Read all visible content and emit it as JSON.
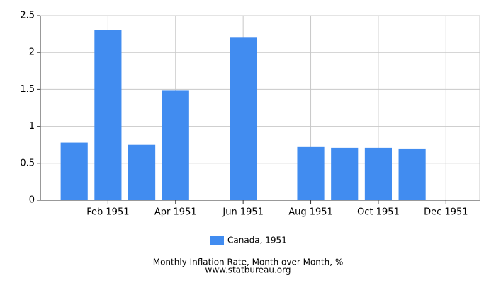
{
  "chart_data": {
    "type": "bar",
    "categories": [
      null,
      "Feb 1951",
      null,
      "Apr 1951",
      null,
      "Jun 1951",
      null,
      "Aug 1951",
      null,
      "Oct 1951",
      null,
      "Dec 1951"
    ],
    "series": [
      {
        "name": "Canada, 1951",
        "color": "#418cf0",
        "values": [
          0.78,
          2.3,
          0.75,
          1.49,
          0,
          2.2,
          0,
          0.72,
          0.71,
          0.71,
          0.7,
          null
        ]
      }
    ],
    "ylim": [
      0,
      2.5
    ],
    "yticks": [
      0,
      0.5,
      1,
      1.5,
      2,
      2.5
    ],
    "grid": true,
    "legend": "bottom",
    "title": "Monthly Inflation Rate, Month over Month, %",
    "subtitle": "www.statbureau.org"
  }
}
